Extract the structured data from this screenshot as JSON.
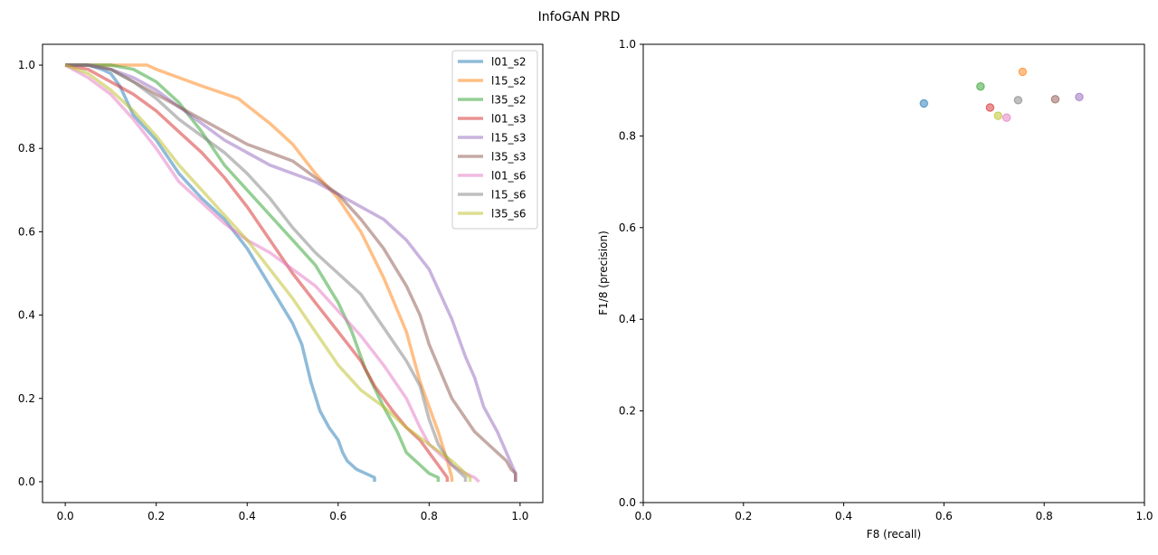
{
  "figure": {
    "suptitle": "InfoGAN PRD"
  },
  "chart_data": [
    {
      "type": "line",
      "title": "",
      "xlabel": "",
      "ylabel": "",
      "xlim": [
        -0.05,
        1.05
      ],
      "ylim": [
        -0.05,
        1.05
      ],
      "xticks": [
        "0.0",
        "0.2",
        "0.4",
        "0.6",
        "0.8",
        "1.0"
      ],
      "yticks": [
        "0.0",
        "0.2",
        "0.4",
        "0.6",
        "0.8",
        "1.0"
      ],
      "legend_position": "top-right",
      "series": [
        {
          "name": "l01_s2",
          "color": "#1f77b4",
          "x": [
            0,
            0.05,
            0.08,
            0.1,
            0.12,
            0.15,
            0.2,
            0.25,
            0.3,
            0.35,
            0.4,
            0.45,
            0.5,
            0.52,
            0.54,
            0.56,
            0.58,
            0.6,
            0.61,
            0.62,
            0.64,
            0.66,
            0.68,
            0.68
          ],
          "y": [
            1.0,
            1.0,
            0.99,
            0.98,
            0.95,
            0.88,
            0.82,
            0.74,
            0.68,
            0.63,
            0.56,
            0.47,
            0.38,
            0.33,
            0.24,
            0.17,
            0.13,
            0.1,
            0.07,
            0.05,
            0.03,
            0.02,
            0.01,
            0.0
          ]
        },
        {
          "name": "l15_s2",
          "color": "#ff7f0e",
          "x": [
            0,
            0.1,
            0.15,
            0.18,
            0.2,
            0.25,
            0.3,
            0.38,
            0.45,
            0.5,
            0.55,
            0.6,
            0.65,
            0.7,
            0.75,
            0.78,
            0.8,
            0.82,
            0.84,
            0.85,
            0.85
          ],
          "y": [
            1.0,
            1.0,
            1.0,
            1.0,
            0.99,
            0.97,
            0.95,
            0.92,
            0.86,
            0.81,
            0.74,
            0.68,
            0.6,
            0.49,
            0.36,
            0.24,
            0.18,
            0.12,
            0.05,
            0.01,
            0.0
          ]
        },
        {
          "name": "l35_s2",
          "color": "#2ca02c",
          "x": [
            0,
            0.05,
            0.1,
            0.15,
            0.2,
            0.25,
            0.3,
            0.35,
            0.4,
            0.45,
            0.5,
            0.55,
            0.6,
            0.63,
            0.66,
            0.7,
            0.73,
            0.75,
            0.78,
            0.8,
            0.82,
            0.82
          ],
          "y": [
            1.0,
            1.0,
            1.0,
            0.99,
            0.96,
            0.91,
            0.84,
            0.76,
            0.7,
            0.64,
            0.58,
            0.52,
            0.43,
            0.36,
            0.27,
            0.18,
            0.12,
            0.07,
            0.04,
            0.02,
            0.01,
            0.0
          ]
        },
        {
          "name": "l01_s3",
          "color": "#d62728",
          "x": [
            0,
            0.05,
            0.1,
            0.15,
            0.2,
            0.25,
            0.3,
            0.35,
            0.4,
            0.45,
            0.5,
            0.55,
            0.6,
            0.65,
            0.68,
            0.72,
            0.75,
            0.78,
            0.8,
            0.82,
            0.84,
            0.84
          ],
          "y": [
            1.0,
            0.99,
            0.96,
            0.93,
            0.89,
            0.84,
            0.79,
            0.73,
            0.66,
            0.58,
            0.5,
            0.43,
            0.36,
            0.29,
            0.23,
            0.17,
            0.13,
            0.1,
            0.07,
            0.04,
            0.01,
            0.0
          ]
        },
        {
          "name": "l15_s3",
          "color": "#9467bd",
          "x": [
            0,
            0.05,
            0.1,
            0.15,
            0.2,
            0.25,
            0.3,
            0.35,
            0.4,
            0.45,
            0.5,
            0.55,
            0.6,
            0.65,
            0.7,
            0.75,
            0.8,
            0.85,
            0.88,
            0.9,
            0.92,
            0.95,
            0.97,
            0.99,
            0.99
          ],
          "y": [
            1.0,
            1.0,
            0.99,
            0.97,
            0.94,
            0.9,
            0.86,
            0.82,
            0.79,
            0.76,
            0.74,
            0.72,
            0.69,
            0.66,
            0.63,
            0.58,
            0.51,
            0.39,
            0.3,
            0.25,
            0.18,
            0.12,
            0.07,
            0.02,
            0.0
          ]
        },
        {
          "name": "l35_s3",
          "color": "#8c564b",
          "x": [
            0,
            0.05,
            0.1,
            0.15,
            0.2,
            0.25,
            0.3,
            0.35,
            0.4,
            0.45,
            0.5,
            0.55,
            0.6,
            0.65,
            0.7,
            0.75,
            0.78,
            0.8,
            0.85,
            0.9,
            0.93,
            0.95,
            0.97,
            0.98,
            0.99,
            0.99
          ],
          "y": [
            1.0,
            1.0,
            0.99,
            0.96,
            0.93,
            0.9,
            0.87,
            0.84,
            0.81,
            0.79,
            0.77,
            0.73,
            0.69,
            0.63,
            0.56,
            0.47,
            0.4,
            0.33,
            0.2,
            0.12,
            0.09,
            0.07,
            0.05,
            0.03,
            0.02,
            0.0
          ]
        },
        {
          "name": "l01_s6",
          "color": "#e377c2",
          "x": [
            0,
            0.05,
            0.1,
            0.15,
            0.2,
            0.25,
            0.3,
            0.35,
            0.4,
            0.45,
            0.5,
            0.55,
            0.6,
            0.65,
            0.7,
            0.75,
            0.78,
            0.8,
            0.85,
            0.88,
            0.9,
            0.91,
            0.91
          ],
          "y": [
            1.0,
            0.97,
            0.93,
            0.87,
            0.8,
            0.72,
            0.67,
            0.62,
            0.58,
            0.55,
            0.51,
            0.47,
            0.41,
            0.35,
            0.28,
            0.2,
            0.13,
            0.09,
            0.04,
            0.02,
            0.01,
            0.0,
            0.0
          ]
        },
        {
          "name": "l15_s6",
          "color": "#7f7f7f",
          "x": [
            0,
            0.05,
            0.1,
            0.15,
            0.2,
            0.25,
            0.3,
            0.35,
            0.4,
            0.45,
            0.5,
            0.55,
            0.6,
            0.65,
            0.7,
            0.75,
            0.78,
            0.8,
            0.82,
            0.85,
            0.88,
            0.88
          ],
          "y": [
            1.0,
            1.0,
            0.99,
            0.96,
            0.92,
            0.87,
            0.83,
            0.79,
            0.74,
            0.68,
            0.61,
            0.55,
            0.5,
            0.45,
            0.37,
            0.29,
            0.23,
            0.15,
            0.09,
            0.04,
            0.01,
            0.0
          ]
        },
        {
          "name": "l35_s6",
          "color": "#bcbd22",
          "x": [
            0,
            0.05,
            0.1,
            0.15,
            0.2,
            0.25,
            0.3,
            0.35,
            0.4,
            0.45,
            0.5,
            0.55,
            0.6,
            0.65,
            0.7,
            0.75,
            0.8,
            0.85,
            0.88,
            0.89,
            0.89
          ],
          "y": [
            1.0,
            0.98,
            0.94,
            0.89,
            0.83,
            0.76,
            0.7,
            0.64,
            0.58,
            0.51,
            0.44,
            0.36,
            0.28,
            0.22,
            0.18,
            0.13,
            0.09,
            0.05,
            0.02,
            0.01,
            0.0
          ]
        }
      ]
    },
    {
      "type": "scatter",
      "title": "",
      "xlabel": "F8 (recall)",
      "ylabel": "F1/8 (precision)",
      "xlim": [
        0,
        1
      ],
      "ylim": [
        0,
        1
      ],
      "xticks": [
        "0.0",
        "0.2",
        "0.4",
        "0.6",
        "0.8",
        "1.0"
      ],
      "yticks": [
        "0.0",
        "0.2",
        "0.4",
        "0.6",
        "0.8",
        "1.0"
      ],
      "points": [
        {
          "name": "l01_s2",
          "color": "#1f77b4",
          "x": 0.56,
          "y": 0.871
        },
        {
          "name": "l15_s2",
          "color": "#ff7f0e",
          "x": 0.757,
          "y": 0.94
        },
        {
          "name": "l35_s2",
          "color": "#2ca02c",
          "x": 0.673,
          "y": 0.908
        },
        {
          "name": "l01_s3",
          "color": "#d62728",
          "x": 0.692,
          "y": 0.862
        },
        {
          "name": "l15_s3",
          "color": "#9467bd",
          "x": 0.87,
          "y": 0.885
        },
        {
          "name": "l35_s3",
          "color": "#8c564b",
          "x": 0.822,
          "y": 0.88
        },
        {
          "name": "l01_s6",
          "color": "#e377c2",
          "x": 0.725,
          "y": 0.84
        },
        {
          "name": "l15_s6",
          "color": "#7f7f7f",
          "x": 0.748,
          "y": 0.878
        },
        {
          "name": "l35_s6",
          "color": "#bcbd22",
          "x": 0.708,
          "y": 0.844
        }
      ]
    }
  ]
}
